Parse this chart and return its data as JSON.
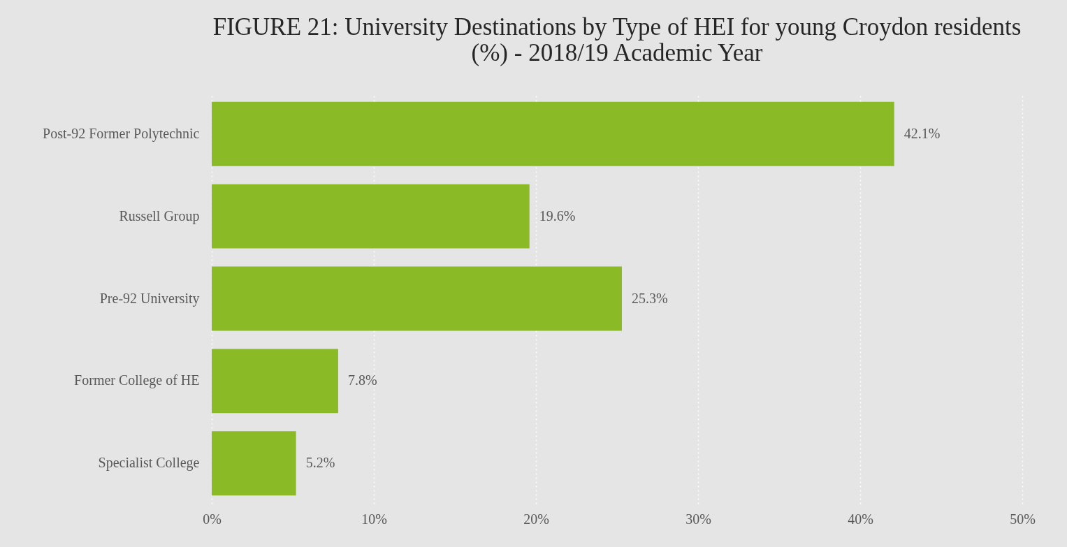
{
  "chart_data": {
    "type": "bar",
    "orientation": "horizontal",
    "title": "FIGURE 21: University Destinations by Type of HEI for young Croydon residents (%) - 2018/19 Academic Year",
    "categories": [
      "Post-92 Former Polytechnic",
      "Russell Group",
      "Pre-92 University",
      "Former College of HE",
      "Specialist College"
    ],
    "values": [
      42.1,
      19.6,
      25.3,
      7.8,
      5.2
    ],
    "value_labels": [
      "42.1%",
      "19.6%",
      "25.3%",
      "7.8%",
      "5.2%"
    ],
    "color": "#8aba25",
    "xlim": [
      0,
      50
    ],
    "xticks": [
      {
        "value": 0,
        "label": "0%"
      },
      {
        "value": 10,
        "label": "10%"
      },
      {
        "value": 20,
        "label": "20%"
      },
      {
        "value": 30,
        "label": "30%"
      },
      {
        "value": 40,
        "label": "40%"
      },
      {
        "value": 50,
        "label": "50%"
      }
    ],
    "grid": "x"
  }
}
